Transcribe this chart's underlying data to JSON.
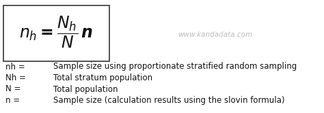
{
  "bg_color": "#ffffff",
  "box_border_color": "#444444",
  "formula": "$\\boldsymbol{n_h = \\dfrac{N_h}{N}\\, n}$",
  "watermark": "www.kandadata.com",
  "watermark_color": "#bbbbbb",
  "legend_items": [
    [
      "nh =",
      "Sample size using proportionate stratified random sampling"
    ],
    [
      "Nh =",
      "Total stratum population"
    ],
    [
      "N =",
      "Total population"
    ],
    [
      "n =",
      "Sample size (calculation results using the slovin formula)"
    ]
  ],
  "font_size_formula": 17,
  "font_size_legend": 8.5,
  "font_size_watermark": 7.5
}
